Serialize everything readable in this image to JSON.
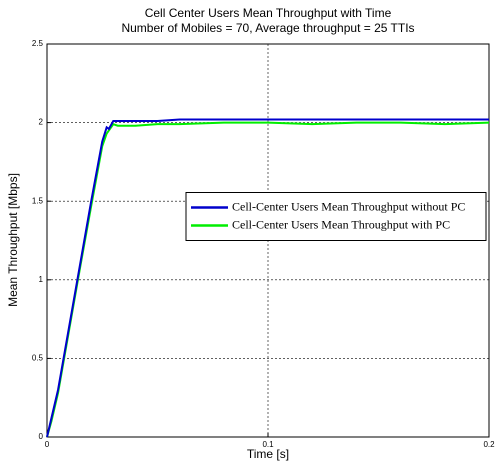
{
  "chart_data": {
    "type": "line",
    "title": "Cell Center Users Mean Throughput with Time",
    "subtitle": "Number of Mobiles = 70, Average throughput = 25 TTIs",
    "x_label": "Time [s]",
    "y_label": "Mean Throughput [Mbps]",
    "x": [
      0,
      0.002,
      0.005,
      0.01,
      0.015,
      0.02,
      0.025,
      0.027,
      0.028,
      0.03,
      0.032,
      0.035,
      0.04,
      0.05,
      0.06,
      0.08,
      0.1,
      0.12,
      0.14,
      0.16,
      0.18,
      0.2
    ],
    "series": [
      {
        "name": "Cell-Center Users Mean Throughput without PC",
        "color": "#0000cc",
        "values": [
          0,
          0.12,
          0.3,
          0.7,
          1.1,
          1.5,
          1.88,
          1.97,
          1.96,
          2.01,
          2.01,
          2.01,
          2.01,
          2.01,
          2.02,
          2.02,
          2.02,
          2.02,
          2.02,
          2.02,
          2.02,
          2.02
        ]
      },
      {
        "name": "Cell-Center Users Mean Throughput with PC",
        "color": "#00ee00",
        "values": [
          0,
          0.1,
          0.28,
          0.68,
          1.08,
          1.47,
          1.85,
          1.93,
          1.95,
          1.99,
          1.98,
          1.98,
          1.98,
          1.99,
          1.99,
          2.0,
          2.0,
          1.99,
          2.0,
          2.0,
          1.99,
          2.0
        ]
      }
    ],
    "xlim": [
      0,
      0.2
    ],
    "xticks": [
      0,
      0.1,
      0.2
    ],
    "ylim": [
      0,
      2.5
    ],
    "yticks": [
      0,
      0.5,
      1,
      1.5,
      2,
      2.5
    ],
    "grid": true,
    "legend": "east"
  }
}
